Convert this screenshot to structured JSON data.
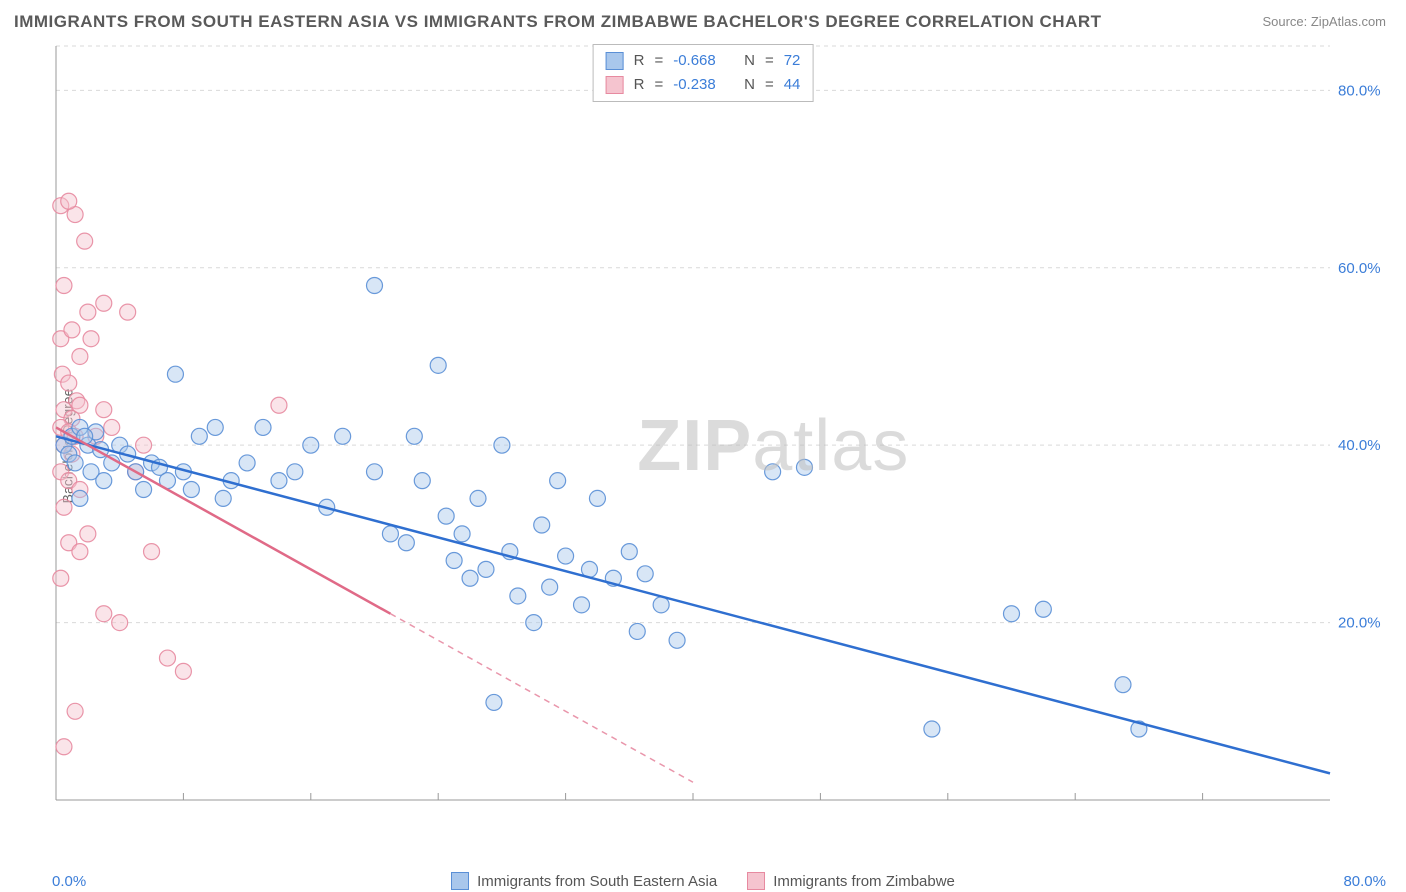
{
  "title": "IMMIGRANTS FROM SOUTH EASTERN ASIA VS IMMIGRANTS FROM ZIMBABWE BACHELOR'S DEGREE CORRELATION CHART",
  "source_label": "Source: ZipAtlas.com",
  "y_axis_label": "Bachelor's Degree",
  "watermark_bold": "ZIP",
  "watermark_rest": "atlas",
  "x_tick_min": "0.0%",
  "x_tick_max": "80.0%",
  "chart": {
    "type": "scatter",
    "xlim": [
      0,
      80
    ],
    "ylim": [
      0,
      85
    ],
    "y_ticks": [
      20,
      40,
      60,
      80
    ],
    "y_tick_labels": [
      "20.0%",
      "40.0%",
      "60.0%",
      "80.0%"
    ],
    "x_minor_ticks": [
      8,
      16,
      24,
      32,
      40,
      48,
      56,
      64,
      72
    ],
    "background_color": "#ffffff",
    "grid_color": "#d9d9d9",
    "axis_color": "#999999",
    "tick_label_color": "#3b7dd8",
    "marker_radius": 8,
    "marker_opacity": 0.45,
    "marker_stroke_width": 1.2,
    "series": [
      {
        "name": "Immigrants from South Eastern Asia",
        "color_fill": "#a9c7ec",
        "color_stroke": "#5a8fd6",
        "line_color": "#2f6fd0",
        "R": -0.668,
        "N": 72,
        "trend": {
          "x1": 0,
          "y1": 41,
          "x2": 80,
          "y2": 3
        },
        "trend_dash_after_x": 80,
        "points": [
          [
            0.5,
            40
          ],
          [
            0.8,
            39
          ],
          [
            1,
            41
          ],
          [
            1.2,
            38
          ],
          [
            1.5,
            42
          ],
          [
            1.5,
            34
          ],
          [
            2,
            40
          ],
          [
            2.2,
            37
          ],
          [
            2.5,
            41.5
          ],
          [
            3,
            36
          ],
          [
            3.5,
            38
          ],
          [
            4,
            40
          ],
          [
            4.5,
            39
          ],
          [
            5,
            37
          ],
          [
            5.5,
            35
          ],
          [
            6,
            38
          ],
          [
            6.5,
            37.5
          ],
          [
            7,
            36
          ],
          [
            7.5,
            48
          ],
          [
            8,
            37
          ],
          [
            8.5,
            35
          ],
          [
            9,
            41
          ],
          [
            10,
            42
          ],
          [
            10.5,
            34
          ],
          [
            11,
            36
          ],
          [
            12,
            38
          ],
          [
            13,
            42
          ],
          [
            14,
            36
          ],
          [
            15,
            37
          ],
          [
            16,
            40
          ],
          [
            17,
            33
          ],
          [
            18,
            41
          ],
          [
            20,
            58
          ],
          [
            20,
            37
          ],
          [
            21,
            30
          ],
          [
            22,
            29
          ],
          [
            22.5,
            41
          ],
          [
            23,
            36
          ],
          [
            24,
            49
          ],
          [
            24.5,
            32
          ],
          [
            25,
            27
          ],
          [
            25.5,
            30
          ],
          [
            26,
            25
          ],
          [
            26.5,
            34
          ],
          [
            27,
            26
          ],
          [
            27.5,
            11
          ],
          [
            28,
            40
          ],
          [
            28.5,
            28
          ],
          [
            29,
            23
          ],
          [
            30,
            20
          ],
          [
            30.5,
            31
          ],
          [
            31,
            24
          ],
          [
            31.5,
            36
          ],
          [
            32,
            27.5
          ],
          [
            33,
            22
          ],
          [
            33.5,
            26
          ],
          [
            34,
            34
          ],
          [
            35,
            25
          ],
          [
            36,
            28
          ],
          [
            36.5,
            19
          ],
          [
            37,
            25.5
          ],
          [
            38,
            22
          ],
          [
            39,
            18
          ],
          [
            45,
            37
          ],
          [
            47,
            37.5
          ],
          [
            55,
            8
          ],
          [
            60,
            21
          ],
          [
            62,
            21.5
          ],
          [
            67,
            13
          ],
          [
            68,
            8
          ],
          [
            1.8,
            41
          ],
          [
            2.8,
            39.5
          ]
        ]
      },
      {
        "name": "Immigrants from Zimbabwe",
        "color_fill": "#f5c4cf",
        "color_stroke": "#e78aa0",
        "line_color": "#e06a87",
        "R": -0.238,
        "N": 44,
        "trend": {
          "x1": 0,
          "y1": 42,
          "x2": 21,
          "y2": 21
        },
        "trend_dash_after_x": 21,
        "points": [
          [
            0.3,
            67
          ],
          [
            1.2,
            66
          ],
          [
            0.8,
            67.5
          ],
          [
            1.8,
            63
          ],
          [
            0.5,
            58
          ],
          [
            2,
            55
          ],
          [
            0.3,
            52
          ],
          [
            1,
            53
          ],
          [
            1.5,
            50
          ],
          [
            2.2,
            52
          ],
          [
            3,
            56
          ],
          [
            0.4,
            48
          ],
          [
            0.8,
            47
          ],
          [
            1.3,
            45
          ],
          [
            0.5,
            44
          ],
          [
            1,
            43
          ],
          [
            1.5,
            44.5
          ],
          [
            0.3,
            42
          ],
          [
            0.8,
            41.5
          ],
          [
            1.2,
            41
          ],
          [
            0.5,
            40
          ],
          [
            1,
            39
          ],
          [
            0.3,
            37
          ],
          [
            0.8,
            36
          ],
          [
            1.5,
            35
          ],
          [
            0.5,
            33
          ],
          [
            2,
            30
          ],
          [
            0.8,
            29
          ],
          [
            1.5,
            28
          ],
          [
            0.3,
            25
          ],
          [
            3,
            21
          ],
          [
            4,
            20
          ],
          [
            5,
            37
          ],
          [
            6,
            28
          ],
          [
            7,
            16
          ],
          [
            8,
            14.5
          ],
          [
            4.5,
            55
          ],
          [
            5.5,
            40
          ],
          [
            14,
            44.5
          ],
          [
            2.5,
            41
          ],
          [
            3.5,
            42
          ],
          [
            1.2,
            10
          ],
          [
            0.5,
            6
          ],
          [
            3,
            44
          ]
        ]
      }
    ]
  },
  "top_legend": {
    "R_label": "R",
    "N_label": "N",
    "eq": "="
  },
  "bottom_legend": {
    "label_a": "Immigrants from South Eastern Asia",
    "label_b": "Immigrants from Zimbabwe"
  }
}
